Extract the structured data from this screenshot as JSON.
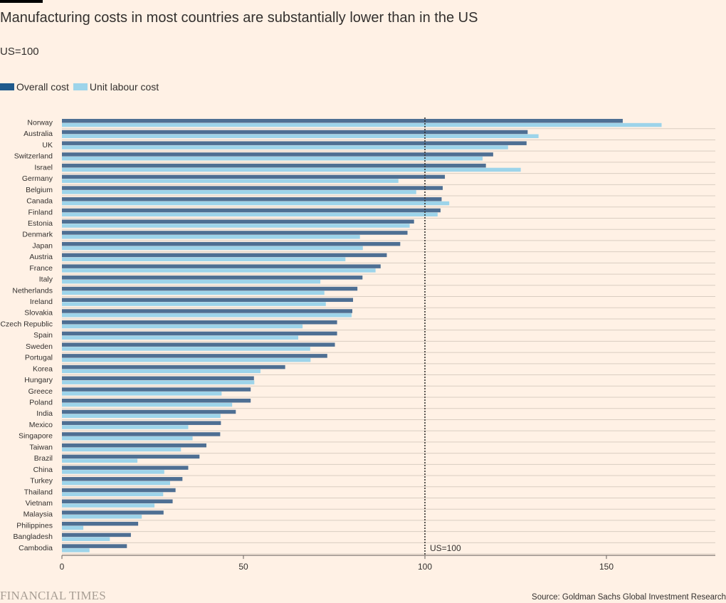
{
  "header": {
    "title": "Manufacturing costs in most countries are substantially lower than in the US",
    "subtitle": "US=100"
  },
  "legend": {
    "items": [
      {
        "label": "Overall cost",
        "color": "#1f5a8c"
      },
      {
        "label": "Unit labour cost",
        "color": "#9dd4ea"
      }
    ]
  },
  "footer": {
    "brand": "FINANCIAL TIMES",
    "source": "Source: Goldman Sachs Global Investment Research"
  },
  "chart_data": {
    "type": "bar",
    "orientation": "horizontal",
    "categories": [
      "Norway",
      "Australia",
      "UK",
      "Switzerland",
      "Israel",
      "Germany",
      "Belgium",
      "Canada",
      "Finland",
      "Estonia",
      "Denmark",
      "Japan",
      "Austria",
      "France",
      "Italy",
      "Netherlands",
      "Ireland",
      "Slovakia",
      "Czech Republic",
      "Spain",
      "Sweden",
      "Portugal",
      "Korea",
      "Hungary",
      "Greece",
      "Poland",
      "India",
      "Mexico",
      "Singapore",
      "Taiwan",
      "Brazil",
      "China",
      "Turkey",
      "Thailand",
      "Vietnam",
      "Malaysia",
      "Philippines",
      "Bangladesh",
      "Cambodia"
    ],
    "series": [
      {
        "name": "Overall cost",
        "color": "#4e6f93",
        "values": [
          154.5,
          128.3,
          128,
          118.8,
          116.8,
          105.5,
          104.9,
          104.6,
          104.3,
          97,
          95.2,
          93.2,
          89.5,
          87.8,
          82.8,
          81.4,
          80.2,
          80,
          75.8,
          75.8,
          75.2,
          73.1,
          61.5,
          52.9,
          52,
          52,
          47.9,
          43.8,
          43.6,
          39.8,
          37.9,
          34.8,
          33.2,
          31.3,
          30.5,
          28,
          21,
          19,
          17.9
        ]
      },
      {
        "name": "Unit labour cost",
        "color": "#9dd4ea",
        "values": [
          165.2,
          131.3,
          122.9,
          115.9,
          126.4,
          92.7,
          97.6,
          106.7,
          103.5,
          95.8,
          82.1,
          82.9,
          78.1,
          86.4,
          71.2,
          72.3,
          72.7,
          79.8,
          66.3,
          65.1,
          68.4,
          68.5,
          54.7,
          53,
          44,
          46.9,
          43.7,
          34.8,
          36,
          32.8,
          20.8,
          28.2,
          29.8,
          27.9,
          25.5,
          22,
          5.9,
          13.2,
          7.6
        ]
      }
    ],
    "reference_line": {
      "value": 100,
      "label": "US=100",
      "style": "dotted"
    },
    "x_ticks": [
      0,
      50,
      100,
      150
    ],
    "xlim": [
      0,
      180
    ],
    "grid": "horizontal row separators",
    "legend_position": "top-left"
  }
}
